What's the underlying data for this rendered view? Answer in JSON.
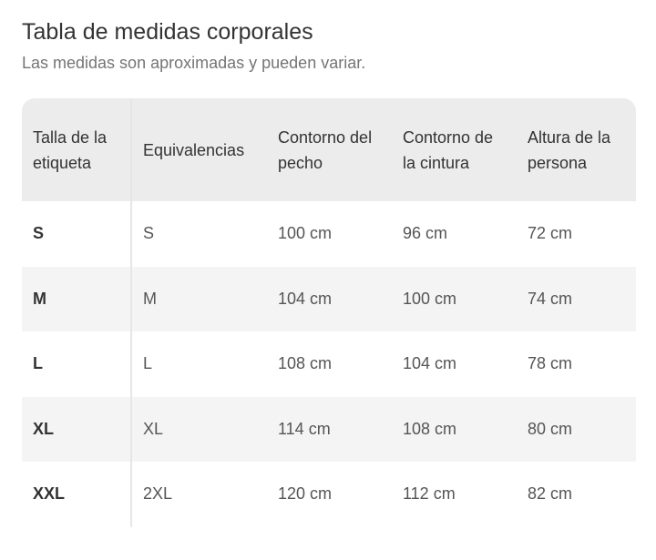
{
  "title": "Tabla de medidas corporales",
  "subtitle": "Las medidas son aproximadas y pueden variar.",
  "table": {
    "headers": [
      "Talla de la etiqueta",
      "Equivalencias",
      "Contorno del pecho",
      "Contorno de la cintura",
      "Altura de la persona"
    ],
    "rows": [
      [
        "S",
        "S",
        "100 cm",
        "96 cm",
        "72 cm"
      ],
      [
        "M",
        "M",
        "104 cm",
        "100 cm",
        "74 cm"
      ],
      [
        "L",
        "L",
        "108 cm",
        "104 cm",
        "78 cm"
      ],
      [
        "XL",
        "XL",
        "114 cm",
        "108 cm",
        "80 cm"
      ],
      [
        "XXL",
        "2XL",
        "120 cm",
        "112 cm",
        "82 cm"
      ]
    ]
  },
  "colors": {
    "header_bg": "#ececec",
    "row_alt_bg": "#f4f4f4",
    "text": "#333333",
    "subtitle": "#757575"
  }
}
